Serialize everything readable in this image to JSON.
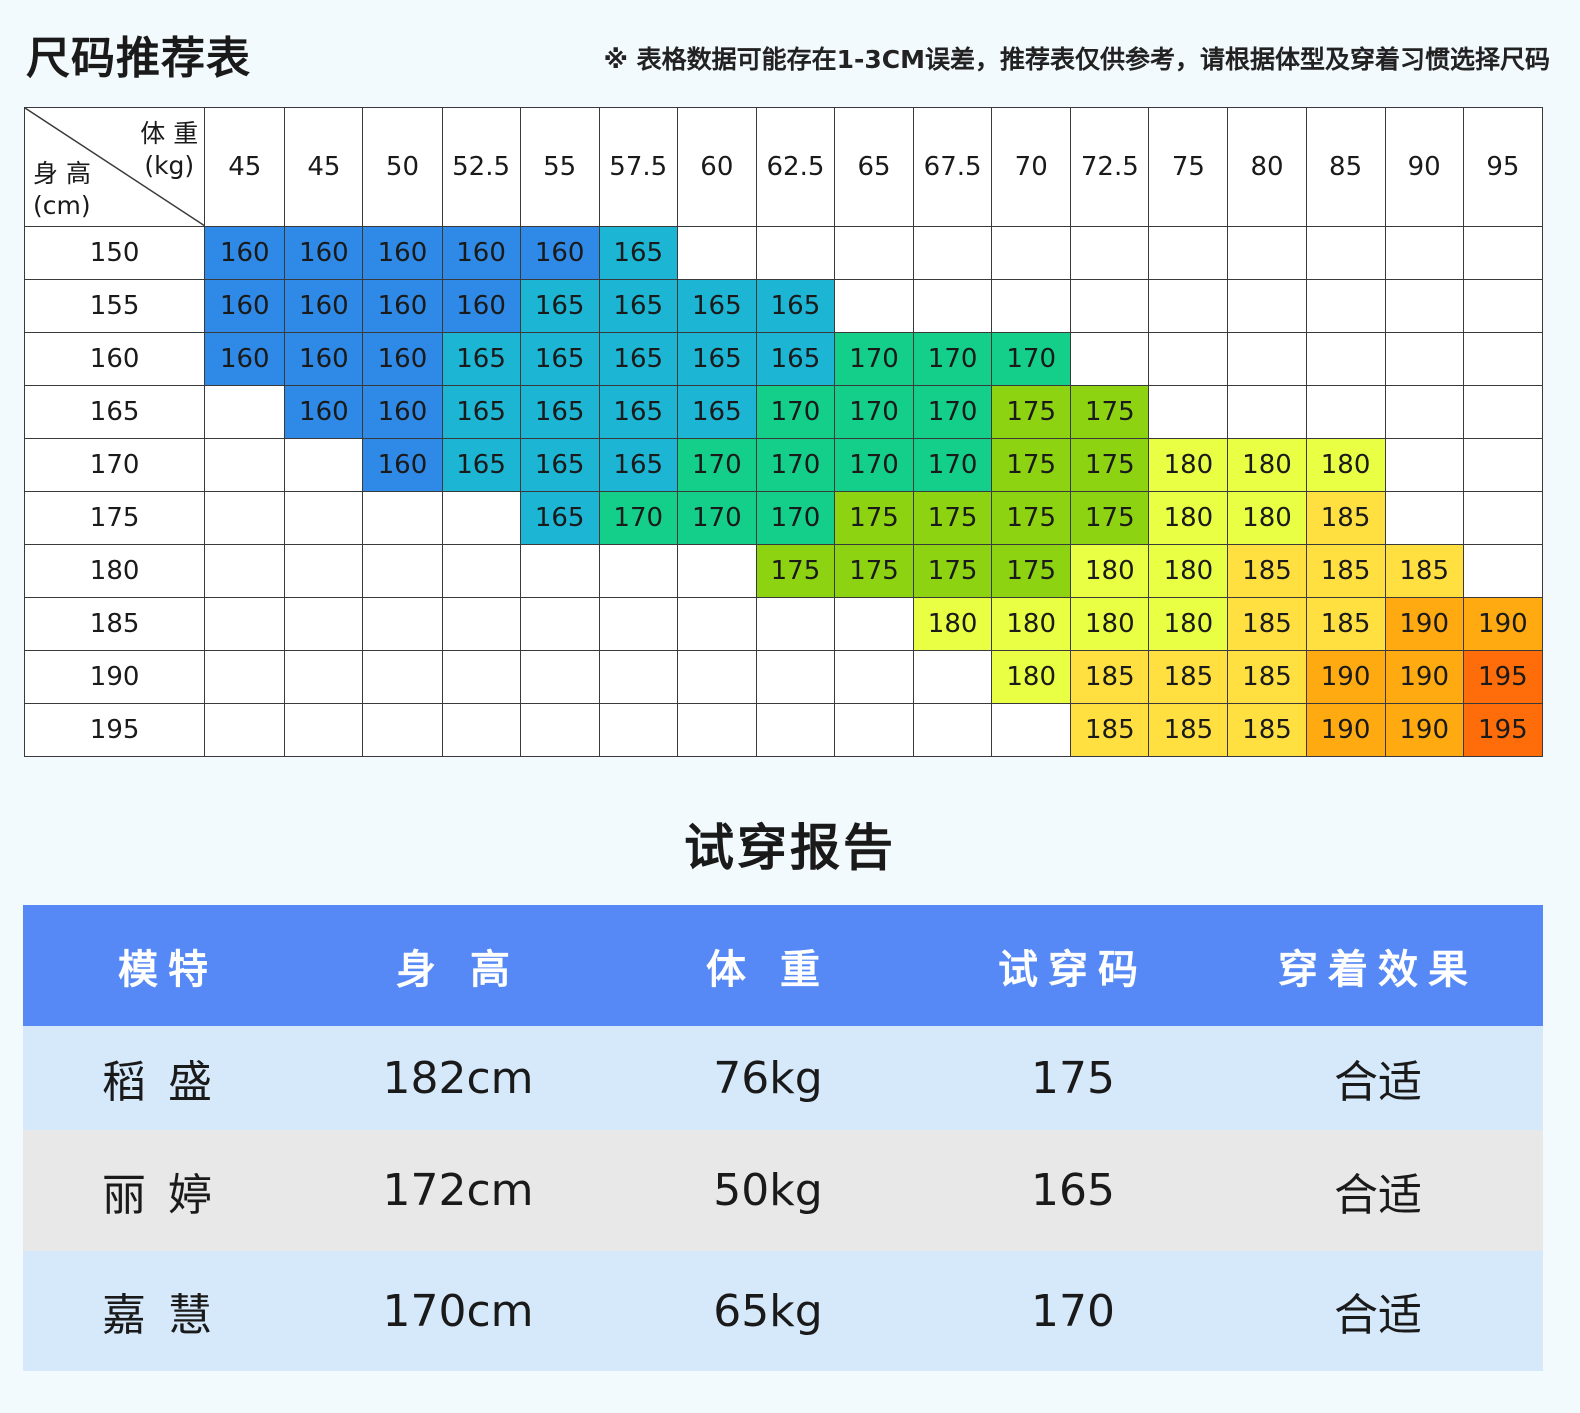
{
  "header": {
    "title": "尺码推荐表",
    "note": "※ 表格数据可能存在1-3CM误差，推荐表仅供参考，请根据体型及穿着习惯选择尺码"
  },
  "size_table": {
    "weight_label_line1": "体 重",
    "weight_label_line2": "(kg)",
    "height_label_line1": "身 高",
    "height_label_line2": "(cm)",
    "weights": [
      "45",
      "45",
      "50",
      "52.5",
      "55",
      "57.5",
      "60",
      "62.5",
      "65",
      "67.5",
      "70",
      "72.5",
      "75",
      "80",
      "85",
      "90",
      "95"
    ],
    "rows": [
      {
        "height": "150",
        "cells": [
          "160",
          "160",
          "160",
          "160",
          "160",
          "165",
          "",
          "",
          "",
          "",
          "",
          "",
          "",
          "",
          "",
          "",
          ""
        ]
      },
      {
        "height": "155",
        "cells": [
          "160",
          "160",
          "160",
          "160",
          "165",
          "165",
          "165",
          "165",
          "",
          "",
          "",
          "",
          "",
          "",
          "",
          "",
          ""
        ]
      },
      {
        "height": "160",
        "cells": [
          "160",
          "160",
          "160",
          "165",
          "165",
          "165",
          "165",
          "165",
          "170",
          "170",
          "170",
          "",
          "",
          "",
          "",
          "",
          ""
        ]
      },
      {
        "height": "165",
        "cells": [
          "",
          "160",
          "160",
          "165",
          "165",
          "165",
          "165",
          "170",
          "170",
          "170",
          "175",
          "175",
          "",
          "",
          "",
          "",
          ""
        ]
      },
      {
        "height": "170",
        "cells": [
          "",
          "",
          "160",
          "165",
          "165",
          "165",
          "170",
          "170",
          "170",
          "170",
          "175",
          "175",
          "180",
          "180",
          "180",
          "",
          ""
        ]
      },
      {
        "height": "175",
        "cells": [
          "",
          "",
          "",
          "",
          "165",
          "170",
          "170",
          "170",
          "175",
          "175",
          "175",
          "175",
          "180",
          "180",
          "185",
          "",
          ""
        ]
      },
      {
        "height": "180",
        "cells": [
          "",
          "",
          "",
          "",
          "",
          "",
          "",
          "175",
          "175",
          "175",
          "175",
          "180",
          "180",
          "185",
          "185",
          "185",
          ""
        ]
      },
      {
        "height": "185",
        "cells": [
          "",
          "",
          "",
          "",
          "",
          "",
          "",
          "",
          "",
          "180",
          "180",
          "180",
          "180",
          "185",
          "185",
          "190",
          "190"
        ]
      },
      {
        "height": "190",
        "cells": [
          "",
          "",
          "",
          "",
          "",
          "",
          "",
          "",
          "",
          "",
          "180",
          "185",
          "185",
          "185",
          "190",
          "190",
          "195"
        ]
      },
      {
        "height": "195",
        "cells": [
          "",
          "",
          "",
          "",
          "",
          "",
          "",
          "",
          "",
          "",
          "",
          "185",
          "185",
          "185",
          "190",
          "190",
          "195"
        ]
      }
    ],
    "size_colors": {
      "160": "#2e8ae6",
      "165": "#1cb5d4",
      "170": "#14cf8a",
      "175": "#8ed312",
      "180": "#e8ff43",
      "185": "#ffe040",
      "190": "#ffaa10",
      "195": "#ff6d0a"
    }
  },
  "report": {
    "title": "试穿报告",
    "columns": [
      "模特",
      "身 高",
      "体 重",
      "试穿码",
      "穿着效果"
    ],
    "rows": [
      {
        "name": "稻盛",
        "height": "182cm",
        "weight": "76kg",
        "size": "175",
        "fit": "合适"
      },
      {
        "name": "丽婷",
        "height": "172cm",
        "weight": "50kg",
        "size": "165",
        "fit": "合适"
      },
      {
        "name": "嘉慧",
        "height": "170cm",
        "weight": "65kg",
        "size": "170",
        "fit": "合适"
      }
    ]
  }
}
